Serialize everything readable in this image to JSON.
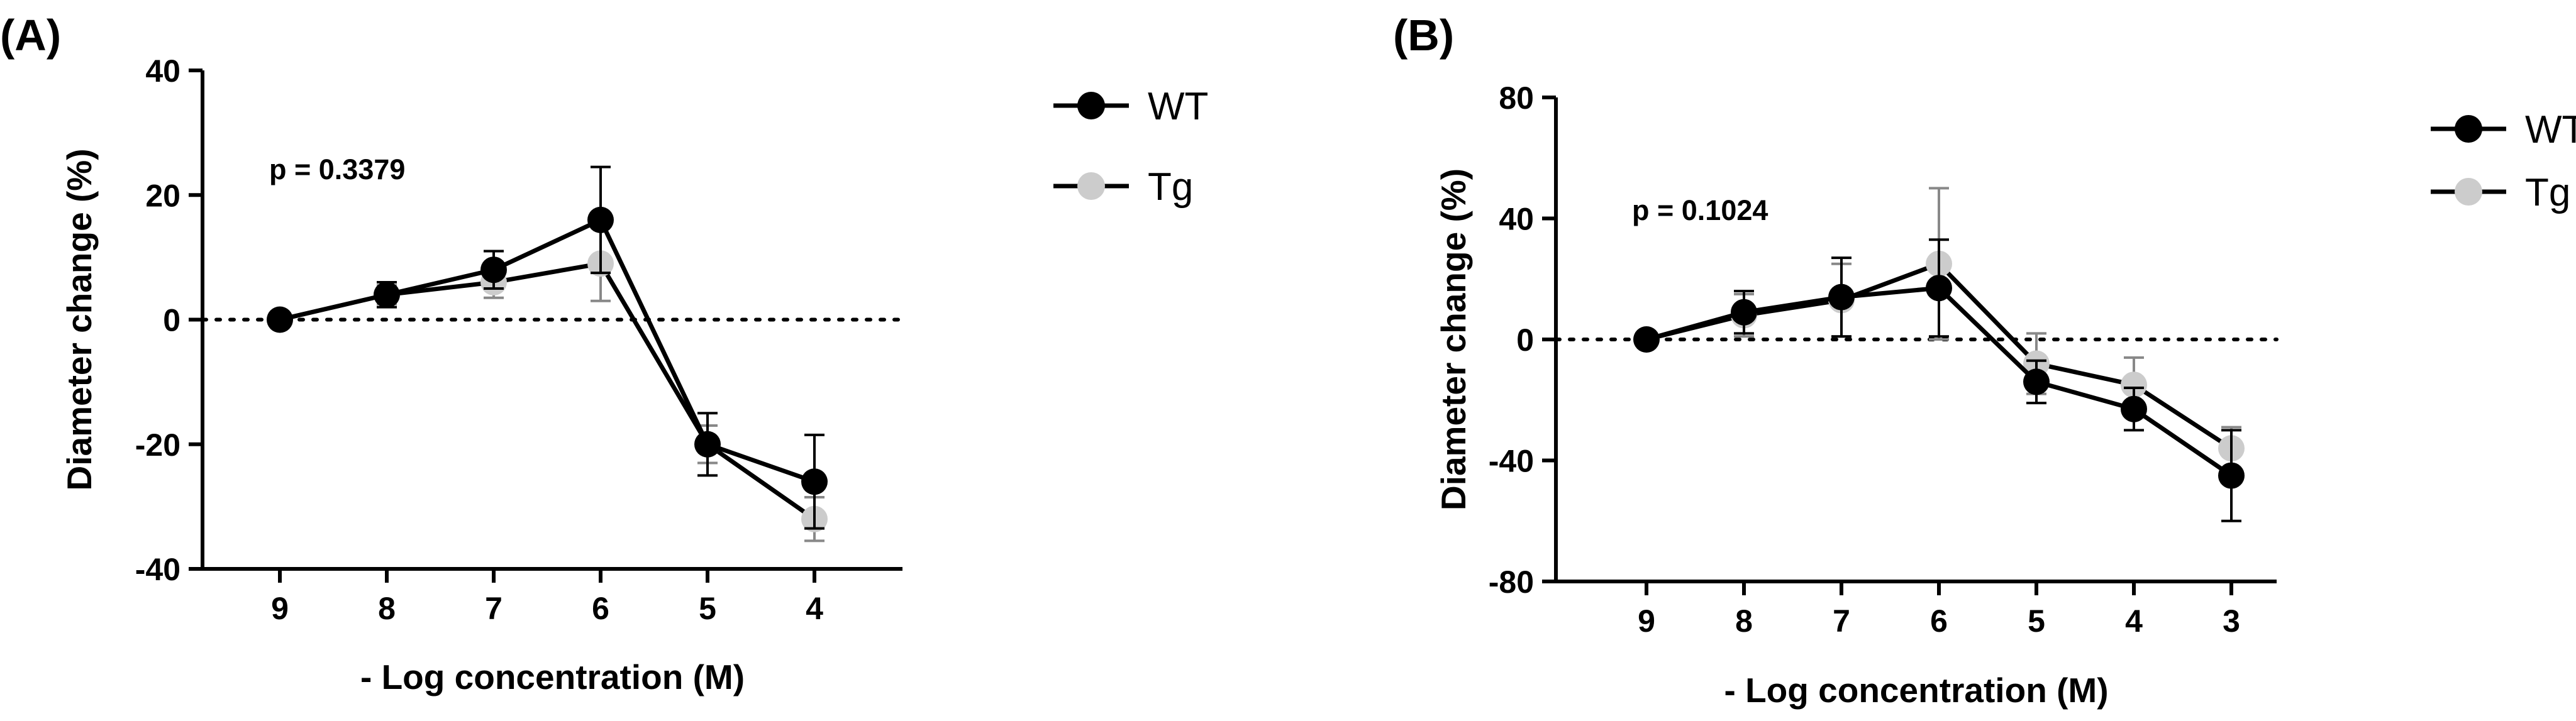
{
  "chart_data": [
    {
      "panel_label": "(A)",
      "type": "line",
      "xlabel": "- Log concentration (M)",
      "ylabel": "Diameter change (%)",
      "ylim": [
        -40,
        40
      ],
      "yticks": [
        40,
        20,
        0,
        -20,
        -40
      ],
      "x": [
        9,
        8,
        7,
        6,
        5,
        4
      ],
      "x_tick_labels": [
        "9",
        "8",
        "7",
        "6",
        "5",
        "4"
      ],
      "annotation": "p = 0.3379",
      "reference_line_y": 0,
      "legend_position": "top-right",
      "series": [
        {
          "name": "WT",
          "color": "#000000",
          "values": [
            0,
            4,
            8,
            16,
            -20,
            -26
          ],
          "error": [
            0,
            2,
            3,
            8.5,
            5,
            7.5
          ]
        },
        {
          "name": "Tg",
          "color": "#cccccc",
          "values": [
            0,
            4,
            6,
            9,
            -20,
            -32
          ],
          "error": [
            0,
            1.5,
            2.5,
            6,
            3,
            3.5
          ]
        }
      ]
    },
    {
      "panel_label": "(B)",
      "type": "line",
      "xlabel": "- Log concentration (M)",
      "ylabel": "Diameter change (%)",
      "ylim": [
        -80,
        80
      ],
      "yticks": [
        80,
        40,
        0,
        -40,
        -80
      ],
      "x": [
        9,
        8,
        7,
        6,
        5,
        4,
        3
      ],
      "x_tick_labels": [
        "9",
        "8",
        "7",
        "6",
        "5",
        "4",
        "3"
      ],
      "annotation": "p = 0.1024",
      "reference_line_y": 0,
      "legend_position": "top-right",
      "series": [
        {
          "name": "WT",
          "color": "#000000",
          "values": [
            0,
            9,
            14,
            17,
            -14,
            -23,
            -45
          ],
          "error": [
            0,
            7,
            13,
            16,
            7,
            7,
            15
          ]
        },
        {
          "name": "Tg",
          "color": "#cccccc",
          "values": [
            0,
            8,
            13,
            25,
            -8,
            -15,
            -36
          ],
          "error": [
            0,
            7,
            12,
            25,
            10,
            9,
            7
          ]
        }
      ]
    }
  ]
}
